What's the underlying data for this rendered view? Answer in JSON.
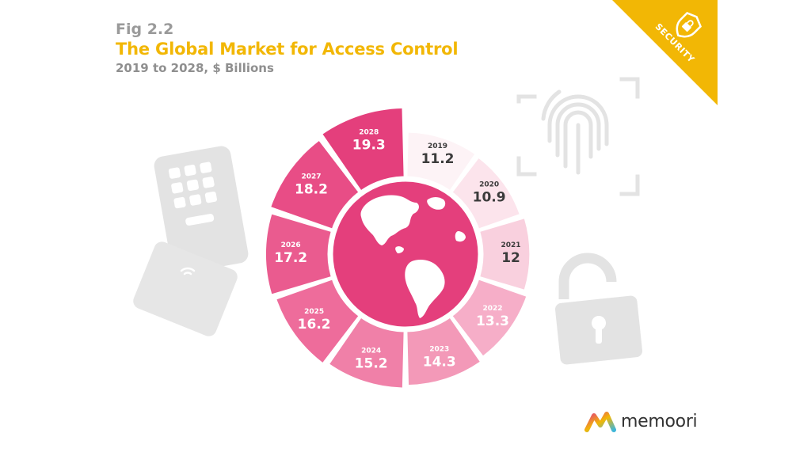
{
  "header": {
    "fig": "Fig 2.2",
    "title": "The Global Market for Access Control",
    "subtitle": "2019 to 2028, $ Billions"
  },
  "corner_badge": {
    "label": "SECURITY",
    "icon": "shield-lock-icon",
    "color": "#f2b705"
  },
  "brand": {
    "name": "memoori",
    "icon": "memoori-logo-icon"
  },
  "decor_icons": [
    "keypad-icon",
    "rfid-card-icon",
    "fingerprint-icon",
    "padlock-icon",
    "globe-icon"
  ],
  "chart_data": {
    "type": "radial-bar",
    "title": "The Global Market for Access Control",
    "subtitle": "2019 to 2028, $ Billions",
    "categories": [
      "2019",
      "2020",
      "2021",
      "2022",
      "2023",
      "2024",
      "2025",
      "2026",
      "2027",
      "2028"
    ],
    "values": [
      11.2,
      10.9,
      12,
      13.3,
      14.3,
      15.2,
      16.2,
      17.2,
      18.2,
      19.3
    ],
    "value_labels": [
      "11.2",
      "10.9",
      "12",
      "13.3",
      "14.3",
      "15.2",
      "16.2",
      "17.2",
      "18.2",
      "19.3"
    ],
    "colors": [
      "#fdf3f6",
      "#fce4ec",
      "#f9d0de",
      "#f6aec8",
      "#f399b8",
      "#f080a8",
      "#ee6c9b",
      "#ea5b8f",
      "#e84d86",
      "#e43f7c"
    ],
    "label_colors": [
      "#3b3b3b",
      "#3b3b3b",
      "#3b3b3b",
      "#ffffff",
      "#ffffff",
      "#ffffff",
      "#ffffff",
      "#ffffff",
      "#ffffff",
      "#ffffff"
    ]
  }
}
